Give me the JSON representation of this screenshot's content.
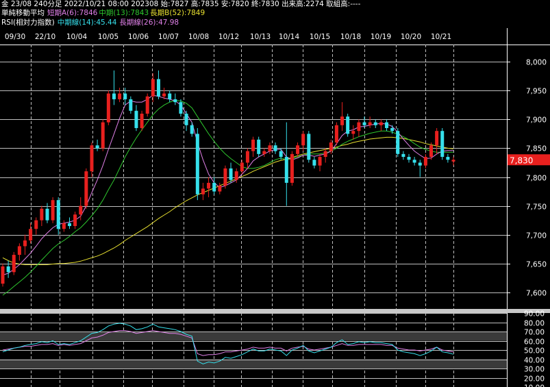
{
  "header": {
    "line1": "金 23/08 240分足 2022/10/21 08:00 202308 始:7827 高:7835 安:7820 終:7830 出来高:2274 取組高:----",
    "ma_title": "単純移動平均",
    "ma_short": "短期A(6):7846",
    "ma_mid": "中期(13):7843",
    "ma_long": "長期B(52):7849",
    "rsi_title": "RSI(相対力指数)",
    "rsi_mid": "中期線(14):45.44",
    "rsi_long": "長期線(26):47.98"
  },
  "colors": {
    "up": "#e8201e",
    "down": "#36e0ec",
    "ma_short": "#e080e8",
    "ma_mid": "#2ec82e",
    "ma_long": "#e8e030",
    "rsi_mid": "#36e0ec",
    "rsi_long": "#e080e8",
    "price_tag": "#e8201e"
  },
  "last_price_label": "7,830",
  "chart_data": [
    {
      "type": "candlestick",
      "x_labels": [
        "09/30",
        "22/10",
        "10/04",
        "10/05",
        "10/06",
        "10/07",
        "10/08",
        "10/12",
        "10/13",
        "10/14",
        "10/15",
        "10/18",
        "10/19",
        "10/20",
        "10/21"
      ],
      "ylim": [
        7570,
        8030
      ],
      "y_ticks": [
        8000,
        7950,
        7900,
        7850,
        7800,
        7750,
        7700,
        7650,
        7600
      ],
      "y_tick_labels": [
        "8,000",
        "7,950",
        "7,900",
        "7,850",
        "7,800",
        "7,750",
        "7,700",
        "7,650",
        "7,600"
      ],
      "grid": true,
      "candles": [
        [
          7615,
          7650,
          7610,
          7645
        ],
        [
          7645,
          7655,
          7625,
          7635
        ],
        [
          7635,
          7670,
          7630,
          7665
        ],
        [
          7665,
          7685,
          7655,
          7680
        ],
        [
          7680,
          7700,
          7665,
          7690
        ],
        [
          7690,
          7720,
          7685,
          7710
        ],
        [
          7710,
          7730,
          7700,
          7725
        ],
        [
          7725,
          7750,
          7715,
          7745
        ],
        [
          7745,
          7755,
          7720,
          7725
        ],
        [
          7725,
          7765,
          7720,
          7760
        ],
        [
          7760,
          7765,
          7700,
          7710
        ],
        [
          7710,
          7725,
          7705,
          7720
        ],
        [
          7720,
          7730,
          7710,
          7715
        ],
        [
          7715,
          7740,
          7710,
          7735
        ],
        [
          7735,
          7765,
          7725,
          7750
        ],
        [
          7750,
          7815,
          7745,
          7810
        ],
        [
          7810,
          7860,
          7800,
          7855
        ],
        [
          7855,
          7865,
          7845,
          7850
        ],
        [
          7850,
          7900,
          7845,
          7895
        ],
        [
          7895,
          7950,
          7890,
          7945
        ],
        [
          7945,
          7985,
          7925,
          7935
        ],
        [
          7935,
          7955,
          7930,
          7945
        ],
        [
          7945,
          7955,
          7925,
          7935
        ],
        [
          7935,
          7940,
          7910,
          7915
        ],
        [
          7915,
          7925,
          7880,
          7885
        ],
        [
          7885,
          7915,
          7880,
          7910
        ],
        [
          7910,
          7945,
          7905,
          7940
        ],
        [
          7940,
          7980,
          7930,
          7970
        ],
        [
          7970,
          7985,
          7935,
          7940
        ],
        [
          7940,
          7955,
          7935,
          7945
        ],
        [
          7945,
          7950,
          7930,
          7935
        ],
        [
          7935,
          7945,
          7925,
          7930
        ],
        [
          7930,
          7935,
          7905,
          7910
        ],
        [
          7910,
          7915,
          7880,
          7890
        ],
        [
          7890,
          7895,
          7870,
          7875
        ],
        [
          7875,
          7885,
          7760,
          7770
        ],
        [
          7770,
          7790,
          7760,
          7780
        ],
        [
          7780,
          7800,
          7765,
          7790
        ],
        [
          7790,
          7800,
          7770,
          7775
        ],
        [
          7775,
          7790,
          7770,
          7785
        ],
        [
          7785,
          7820,
          7780,
          7815
        ],
        [
          7815,
          7825,
          7790,
          7795
        ],
        [
          7795,
          7815,
          7790,
          7810
        ],
        [
          7810,
          7830,
          7805,
          7825
        ],
        [
          7825,
          7850,
          7815,
          7845
        ],
        [
          7845,
          7870,
          7835,
          7865
        ],
        [
          7865,
          7870,
          7835,
          7840
        ],
        [
          7840,
          7850,
          7835,
          7845
        ],
        [
          7845,
          7860,
          7840,
          7855
        ],
        [
          7855,
          7860,
          7840,
          7845
        ],
        [
          7845,
          7850,
          7830,
          7835
        ],
        [
          7835,
          7895,
          7750,
          7790
        ],
        [
          7790,
          7845,
          7785,
          7840
        ],
        [
          7840,
          7860,
          7835,
          7855
        ],
        [
          7855,
          7880,
          7845,
          7875
        ],
        [
          7875,
          7880,
          7825,
          7830
        ],
        [
          7830,
          7835,
          7815,
          7820
        ],
        [
          7820,
          7840,
          7810,
          7835
        ],
        [
          7835,
          7850,
          7825,
          7845
        ],
        [
          7845,
          7865,
          7840,
          7860
        ],
        [
          7860,
          7895,
          7855,
          7890
        ],
        [
          7890,
          7930,
          7880,
          7905
        ],
        [
          7905,
          7910,
          7870,
          7875
        ],
        [
          7875,
          7890,
          7865,
          7880
        ],
        [
          7880,
          7900,
          7870,
          7895
        ],
        [
          7895,
          7905,
          7885,
          7890
        ],
        [
          7890,
          7905,
          7885,
          7895
        ],
        [
          7895,
          7900,
          7885,
          7890
        ],
        [
          7890,
          7900,
          7880,
          7895
        ],
        [
          7895,
          7900,
          7880,
          7885
        ],
        [
          7885,
          7890,
          7875,
          7880
        ],
        [
          7880,
          7885,
          7835,
          7840
        ],
        [
          7840,
          7845,
          7830,
          7835
        ],
        [
          7835,
          7840,
          7825,
          7830
        ],
        [
          7830,
          7835,
          7820,
          7825
        ],
        [
          7825,
          7830,
          7800,
          7820
        ],
        [
          7820,
          7840,
          7815,
          7835
        ],
        [
          7835,
          7860,
          7830,
          7855
        ],
        [
          7855,
          7885,
          7840,
          7880
        ],
        [
          7880,
          7885,
          7830,
          7835
        ],
        [
          7835,
          7840,
          7825,
          7830
        ],
        [
          7827,
          7835,
          7820,
          7830
        ]
      ],
      "ma_short": [
        7630,
        7633,
        7640,
        7648,
        7658,
        7668,
        7680,
        7693,
        7703,
        7712,
        7718,
        7720,
        7722,
        7725,
        7732,
        7750,
        7773,
        7795,
        7820,
        7848,
        7875,
        7902,
        7925,
        7932,
        7930,
        7930,
        7935,
        7942,
        7940,
        7937,
        7935,
        7932,
        7925,
        7910,
        7895,
        7860,
        7830,
        7805,
        7790,
        7782,
        7785,
        7790,
        7795,
        7805,
        7815,
        7828,
        7835,
        7840,
        7845,
        7848,
        7848,
        7835,
        7830,
        7833,
        7838,
        7838,
        7836,
        7838,
        7840,
        7845,
        7858,
        7872,
        7880,
        7882,
        7887,
        7888,
        7890,
        7892,
        7893,
        7892,
        7888,
        7878,
        7866,
        7855,
        7845,
        7838,
        7832,
        7833,
        7840,
        7845,
        7846,
        7846
      ],
      "ma_mid": [
        7595,
        7602,
        7610,
        7618,
        7626,
        7635,
        7645,
        7656,
        7666,
        7676,
        7684,
        7690,
        7697,
        7705,
        7712,
        7722,
        7733,
        7745,
        7760,
        7778,
        7795,
        7815,
        7835,
        7852,
        7868,
        7882,
        7895,
        7908,
        7918,
        7925,
        7930,
        7933,
        7932,
        7928,
        7920,
        7905,
        7890,
        7875,
        7862,
        7850,
        7840,
        7832,
        7825,
        7818,
        7815,
        7815,
        7817,
        7820,
        7825,
        7830,
        7833,
        7830,
        7832,
        7835,
        7838,
        7840,
        7840,
        7840,
        7842,
        7845,
        7850,
        7857,
        7862,
        7866,
        7870,
        7873,
        7876,
        7878,
        7880,
        7880,
        7878,
        7874,
        7870,
        7865,
        7858,
        7852,
        7848,
        7845,
        7843,
        7843,
        7843,
        7843
      ],
      "ma_long": [
        7660,
        7655,
        7651,
        7649,
        7648,
        7648,
        7648,
        7648,
        7648,
        7649,
        7650,
        7650,
        7651,
        7652,
        7654,
        7657,
        7660,
        7663,
        7667,
        7672,
        7677,
        7683,
        7690,
        7696,
        7702,
        7708,
        7714,
        7721,
        7728,
        7734,
        7740,
        7747,
        7753,
        7759,
        7764,
        7769,
        7773,
        7777,
        7781,
        7785,
        7789,
        7793,
        7797,
        7801,
        7805,
        7810,
        7814,
        7818,
        7822,
        7826,
        7829,
        7831,
        7834,
        7837,
        7840,
        7842,
        7844,
        7846,
        7848,
        7850,
        7852,
        7855,
        7857,
        7860,
        7862,
        7864,
        7866,
        7867,
        7868,
        7869,
        7869,
        7868,
        7867,
        7865,
        7863,
        7861,
        7858,
        7856,
        7854,
        7852,
        7850,
        7849
      ]
    },
    {
      "type": "line",
      "title": "RSI(相対力指数)",
      "ylim": [
        10,
        90
      ],
      "y_ticks": [
        90,
        80,
        70,
        60,
        50,
        40,
        30,
        20,
        10
      ],
      "y_tick_labels": [
        "90.00",
        "80.00",
        "70.00",
        "60.00",
        "50.00",
        "40.00",
        "30.00",
        "20.00",
        "10.00"
      ],
      "bands": [
        [
          30,
          40
        ],
        [
          60,
          70
        ]
      ],
      "series": [
        {
          "name": "中期線(14)",
          "values": [
            48,
            50,
            52,
            53,
            55,
            56,
            57,
            59,
            58,
            60,
            56,
            57,
            56,
            58,
            60,
            64,
            68,
            69,
            72,
            76,
            78,
            79,
            78,
            76,
            72,
            73,
            75,
            78,
            75,
            74,
            73,
            72,
            70,
            67,
            65,
            38,
            35,
            37,
            36,
            38,
            42,
            41,
            43,
            45,
            48,
            51,
            49,
            49,
            51,
            50,
            49,
            44,
            50,
            52,
            55,
            49,
            47,
            49,
            51,
            53,
            58,
            61,
            56,
            57,
            59,
            58,
            59,
            58,
            58,
            57,
            56,
            50,
            48,
            47,
            46,
            44,
            46,
            49,
            53,
            48,
            47,
            45.44
          ]
        },
        {
          "name": "長期線(26)",
          "values": [
            50,
            51,
            52,
            53,
            54,
            54,
            55,
            56,
            56,
            57,
            55,
            56,
            55,
            56,
            57,
            60,
            63,
            64,
            66,
            69,
            70,
            71,
            71,
            70,
            68,
            69,
            70,
            71,
            70,
            69,
            68,
            68,
            67,
            65,
            63,
            46,
            44,
            45,
            45,
            46,
            48,
            48,
            49,
            50,
            51,
            53,
            52,
            52,
            53,
            52,
            52,
            49,
            52,
            53,
            54,
            51,
            50,
            51,
            52,
            53,
            55,
            57,
            55,
            55,
            56,
            56,
            56,
            56,
            56,
            55,
            55,
            52,
            51,
            50,
            50,
            49,
            50,
            51,
            53,
            50,
            49,
            47.98
          ]
        }
      ]
    }
  ]
}
